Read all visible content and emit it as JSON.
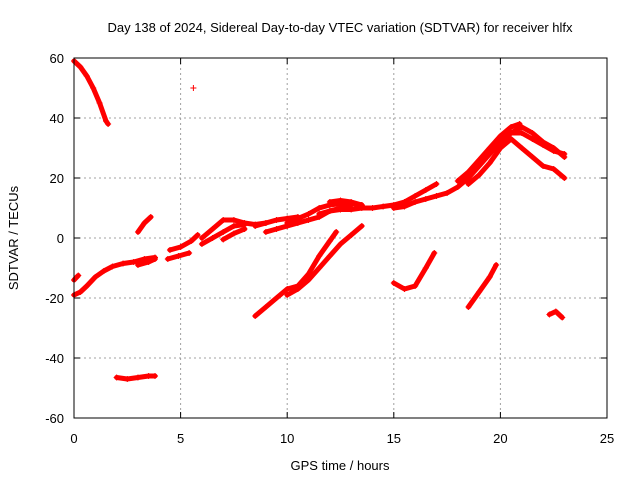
{
  "chart_data": {
    "type": "scatter",
    "title": "Day 138 of 2024, Sidereal Day-to-day VTEC variation (SDTVAR) for receiver hlfx",
    "xlabel": "GPS time / hours",
    "ylabel": "SDTVAR / TECUs",
    "xlim": [
      0,
      25
    ],
    "ylim": [
      -60,
      60
    ],
    "x_ticks": [
      0,
      5,
      10,
      15,
      20,
      25
    ],
    "y_ticks": [
      -60,
      -40,
      -20,
      0,
      20,
      40,
      60
    ],
    "x_tick_labels": [
      "0",
      "5",
      "10",
      "15",
      "20",
      "25"
    ],
    "y_tick_labels": [
      "-60",
      "-40",
      "-20",
      "0",
      "20",
      "40",
      "60"
    ],
    "grid": true,
    "marker": "+",
    "color": "#ff0000",
    "series": [
      {
        "name": "arc-1",
        "points": [
          [
            0.0,
            59
          ],
          [
            0.3,
            57
          ],
          [
            0.6,
            54
          ],
          [
            0.9,
            50
          ],
          [
            1.2,
            45
          ],
          [
            1.5,
            39
          ],
          [
            1.6,
            38
          ]
        ]
      },
      {
        "name": "arc-2",
        "points": [
          [
            0.0,
            -19
          ],
          [
            0.3,
            -18
          ],
          [
            0.6,
            -16
          ],
          [
            1.0,
            -13
          ],
          [
            1.4,
            -11
          ],
          [
            1.8,
            -9.5
          ],
          [
            2.3,
            -8.5
          ],
          [
            2.8,
            -8
          ],
          [
            3.3,
            -7
          ],
          [
            3.8,
            -6.5
          ]
        ]
      },
      {
        "name": "arc-3",
        "points": [
          [
            0.0,
            -14
          ],
          [
            0.2,
            -12.5
          ]
        ]
      },
      {
        "name": "arc-4",
        "points": [
          [
            2.0,
            -46.5
          ],
          [
            2.5,
            -47
          ],
          [
            3.0,
            -46.5
          ],
          [
            3.5,
            -46
          ],
          [
            3.8,
            -46
          ]
        ]
      },
      {
        "name": "arc-5",
        "points": [
          [
            3.0,
            2
          ],
          [
            3.3,
            5
          ],
          [
            3.6,
            7
          ]
        ]
      },
      {
        "name": "arc-6",
        "points": [
          [
            3.0,
            -9
          ],
          [
            3.5,
            -8
          ],
          [
            3.8,
            -7
          ]
        ]
      },
      {
        "name": "arc-7",
        "points": [
          [
            4.5,
            -4
          ],
          [
            5.0,
            -3
          ],
          [
            5.5,
            -1
          ],
          [
            5.8,
            1
          ]
        ]
      },
      {
        "name": "arc-8",
        "points": [
          [
            4.4,
            -7
          ],
          [
            4.9,
            -6
          ],
          [
            5.4,
            -5
          ]
        ]
      },
      {
        "name": "arc-9",
        "points": [
          [
            5.6,
            50
          ]
        ]
      },
      {
        "name": "arc-10",
        "points": [
          [
            6.0,
            0
          ],
          [
            6.5,
            3
          ],
          [
            7.0,
            6
          ],
          [
            7.5,
            6
          ],
          [
            8.0,
            5
          ],
          [
            8.5,
            4.5
          ],
          [
            9.0,
            5
          ]
        ]
      },
      {
        "name": "arc-11",
        "points": [
          [
            6.0,
            -2
          ],
          [
            6.5,
            0
          ],
          [
            7.0,
            2
          ],
          [
            7.5,
            4
          ],
          [
            8.0,
            4.5
          ]
        ]
      },
      {
        "name": "arc-12",
        "points": [
          [
            7.0,
            -0.5
          ],
          [
            7.5,
            1.5
          ],
          [
            8.0,
            3
          ]
        ]
      },
      {
        "name": "arc-13",
        "points": [
          [
            8.5,
            4
          ],
          [
            9.0,
            5
          ],
          [
            9.5,
            6
          ],
          [
            10.0,
            6.5
          ],
          [
            10.5,
            7
          ]
        ]
      },
      {
        "name": "arc-14",
        "points": [
          [
            9.0,
            2
          ],
          [
            9.5,
            3
          ],
          [
            10.0,
            4
          ],
          [
            10.5,
            5
          ],
          [
            11.0,
            6
          ],
          [
            11.5,
            7
          ],
          [
            12.0,
            9
          ],
          [
            12.5,
            10
          ],
          [
            13.0,
            10
          ]
        ]
      },
      {
        "name": "arc-15",
        "points": [
          [
            10.0,
            5
          ],
          [
            10.5,
            6.5
          ],
          [
            11.0,
            8
          ],
          [
            11.5,
            10
          ],
          [
            12.0,
            11
          ],
          [
            12.5,
            11.5
          ],
          [
            13.0,
            11.5
          ],
          [
            13.5,
            11
          ]
        ]
      },
      {
        "name": "arc-16",
        "points": [
          [
            11.5,
            8
          ],
          [
            12.0,
            9
          ],
          [
            12.5,
            9.5
          ],
          [
            13.0,
            9.5
          ],
          [
            13.5,
            10
          ],
          [
            14.0,
            10
          ],
          [
            14.5,
            10.5
          ],
          [
            15.0,
            11
          ],
          [
            15.5,
            12
          ],
          [
            16.0,
            14
          ],
          [
            16.5,
            16
          ],
          [
            17.0,
            18
          ]
        ]
      },
      {
        "name": "arc-17",
        "points": [
          [
            12.0,
            12
          ],
          [
            12.5,
            12.5
          ],
          [
            13.0,
            12
          ],
          [
            13.5,
            11
          ]
        ]
      },
      {
        "name": "arc-18",
        "points": [
          [
            15.0,
            10
          ],
          [
            15.5,
            10.5
          ],
          [
            16.0,
            12
          ],
          [
            16.5,
            13
          ],
          [
            17.0,
            14
          ],
          [
            17.5,
            15
          ],
          [
            18.0,
            17
          ],
          [
            18.5,
            20
          ],
          [
            19.0,
            24
          ],
          [
            19.5,
            28
          ],
          [
            20.0,
            32
          ],
          [
            20.5,
            35
          ],
          [
            21.0,
            35
          ],
          [
            21.5,
            33
          ],
          [
            22.0,
            31
          ],
          [
            22.5,
            29
          ],
          [
            23.0,
            28
          ]
        ]
      },
      {
        "name": "arc-19",
        "points": [
          [
            18.5,
            18
          ],
          [
            19.0,
            21
          ],
          [
            19.5,
            25
          ],
          [
            20.0,
            30
          ],
          [
            20.5,
            33
          ],
          [
            21.0,
            30
          ],
          [
            21.5,
            27
          ],
          [
            22.0,
            24
          ],
          [
            22.5,
            23
          ],
          [
            23.0,
            20
          ]
        ]
      },
      {
        "name": "arc-20",
        "points": [
          [
            18.0,
            19
          ],
          [
            18.5,
            22
          ],
          [
            19.0,
            26
          ],
          [
            19.5,
            30
          ],
          [
            20.0,
            34
          ],
          [
            20.5,
            37
          ],
          [
            20.9,
            38
          ]
        ]
      },
      {
        "name": "arc-21",
        "points": [
          [
            20.5,
            35
          ],
          [
            21.0,
            37
          ],
          [
            21.5,
            35
          ],
          [
            22.0,
            32
          ],
          [
            22.5,
            30
          ],
          [
            23.0,
            27
          ]
        ]
      },
      {
        "name": "arc-22",
        "points": [
          [
            8.5,
            -26
          ],
          [
            9.0,
            -23
          ],
          [
            9.5,
            -20
          ],
          [
            10.0,
            -17
          ],
          [
            10.5,
            -16
          ],
          [
            11.0,
            -12
          ],
          [
            11.5,
            -6
          ],
          [
            12.0,
            -1
          ],
          [
            12.3,
            2
          ]
        ]
      },
      {
        "name": "arc-23",
        "points": [
          [
            10.0,
            -19
          ],
          [
            10.5,
            -17
          ],
          [
            11.0,
            -14
          ],
          [
            11.5,
            -10
          ],
          [
            12.0,
            -6
          ],
          [
            12.5,
            -2
          ],
          [
            13.0,
            1
          ],
          [
            13.5,
            4
          ]
        ]
      },
      {
        "name": "arc-24",
        "points": [
          [
            15.0,
            -15
          ],
          [
            15.5,
            -17
          ],
          [
            16.0,
            -16
          ],
          [
            16.5,
            -10
          ],
          [
            16.9,
            -5
          ]
        ]
      },
      {
        "name": "arc-25",
        "points": [
          [
            18.5,
            -23
          ],
          [
            19.0,
            -18
          ],
          [
            19.5,
            -13
          ],
          [
            19.8,
            -9
          ]
        ]
      },
      {
        "name": "arc-26",
        "points": [
          [
            22.3,
            -25.5
          ],
          [
            22.6,
            -24.5
          ],
          [
            22.9,
            -26.5
          ]
        ]
      }
    ]
  }
}
